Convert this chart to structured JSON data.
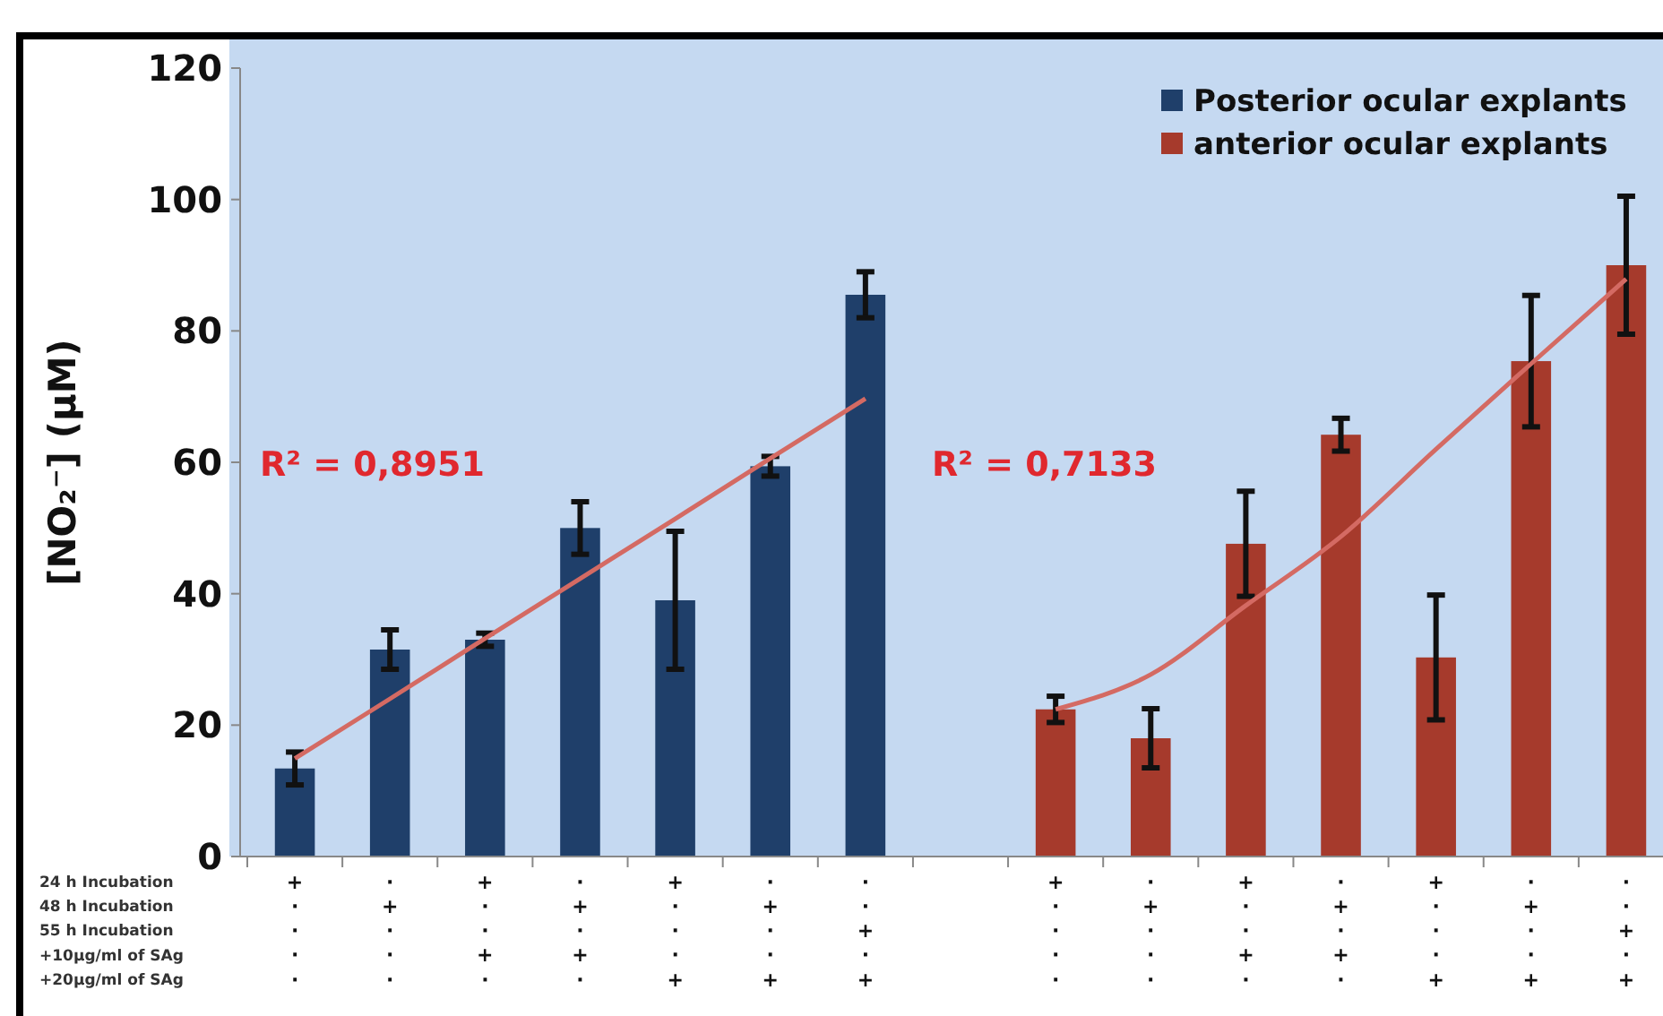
{
  "chart_data": {
    "type": "bar",
    "ylabel": "[NO₂⁻] (µM)",
    "categories": [
      "+\n·\n·\n·\n·",
      "·\n+\n·\n·\n·",
      "+\n·\n·\n+\n·",
      "·\n+\n·\n+\n·",
      "+\n·\n·\n·\n+",
      "·\n+\n·\n·\n+",
      "·\n·\n+\n·\n+",
      null,
      "+\n·\n·\n·\n·",
      "·\n+\n·\n·\n·",
      "+\n·\n·\n+\n·",
      "·\n+\n·\n+\n·",
      "+\n·\n·\n·\n+",
      "·\n+\n·\n·\n+",
      "·\n·\n+\n·\n+"
    ],
    "series": [
      {
        "name": "Posterior ocular explants",
        "color": "#1f3f6a",
        "values": [
          13.4,
          31.5,
          33,
          50,
          39,
          59.4,
          85.5,
          null,
          null,
          null,
          null,
          null,
          null,
          null,
          null
        ],
        "errors": [
          2.5,
          3,
          1,
          4,
          10.5,
          1.5,
          3.5,
          null,
          null,
          null,
          null,
          null,
          null,
          null,
          null
        ]
      },
      {
        "name": "anterior ocular explants",
        "color": "#a63a2c",
        "values": [
          null,
          null,
          null,
          null,
          null,
          null,
          null,
          null,
          22.4,
          18,
          47.6,
          64.2,
          30.3,
          75.4,
          90
        ],
        "errors": [
          null,
          null,
          null,
          null,
          null,
          null,
          null,
          null,
          2,
          4.5,
          8,
          2.5,
          9.5,
          10,
          10.5
        ]
      },
      {
        "type": "line",
        "color": "#d46a63",
        "values": [
          14.9,
          24,
          33.2,
          42.3,
          51.4,
          60.6,
          69.7,
          null,
          null,
          null,
          null,
          null,
          null,
          null,
          null
        ]
      },
      {
        "type": "line",
        "color": "#d46a63",
        "values": [
          null,
          null,
          null,
          null,
          null,
          null,
          null,
          null,
          22.4,
          27.7,
          38.2,
          48.7,
          62,
          75,
          87.9
        ]
      }
    ],
    "ylim": [
      0,
      120
    ],
    "yticks": [
      0,
      20,
      40,
      60,
      80,
      100,
      120
    ],
    "legend": "top right",
    "marker": "none",
    "line_style": "solid",
    "annotations": [
      "R² = 0,8951",
      "R² = 0,7133",
      "24 h Incubation\n48 h Incubation\n55 h Incubation\n+10µg/ml of SAg\n+20µg/ml of SAg"
    ]
  }
}
